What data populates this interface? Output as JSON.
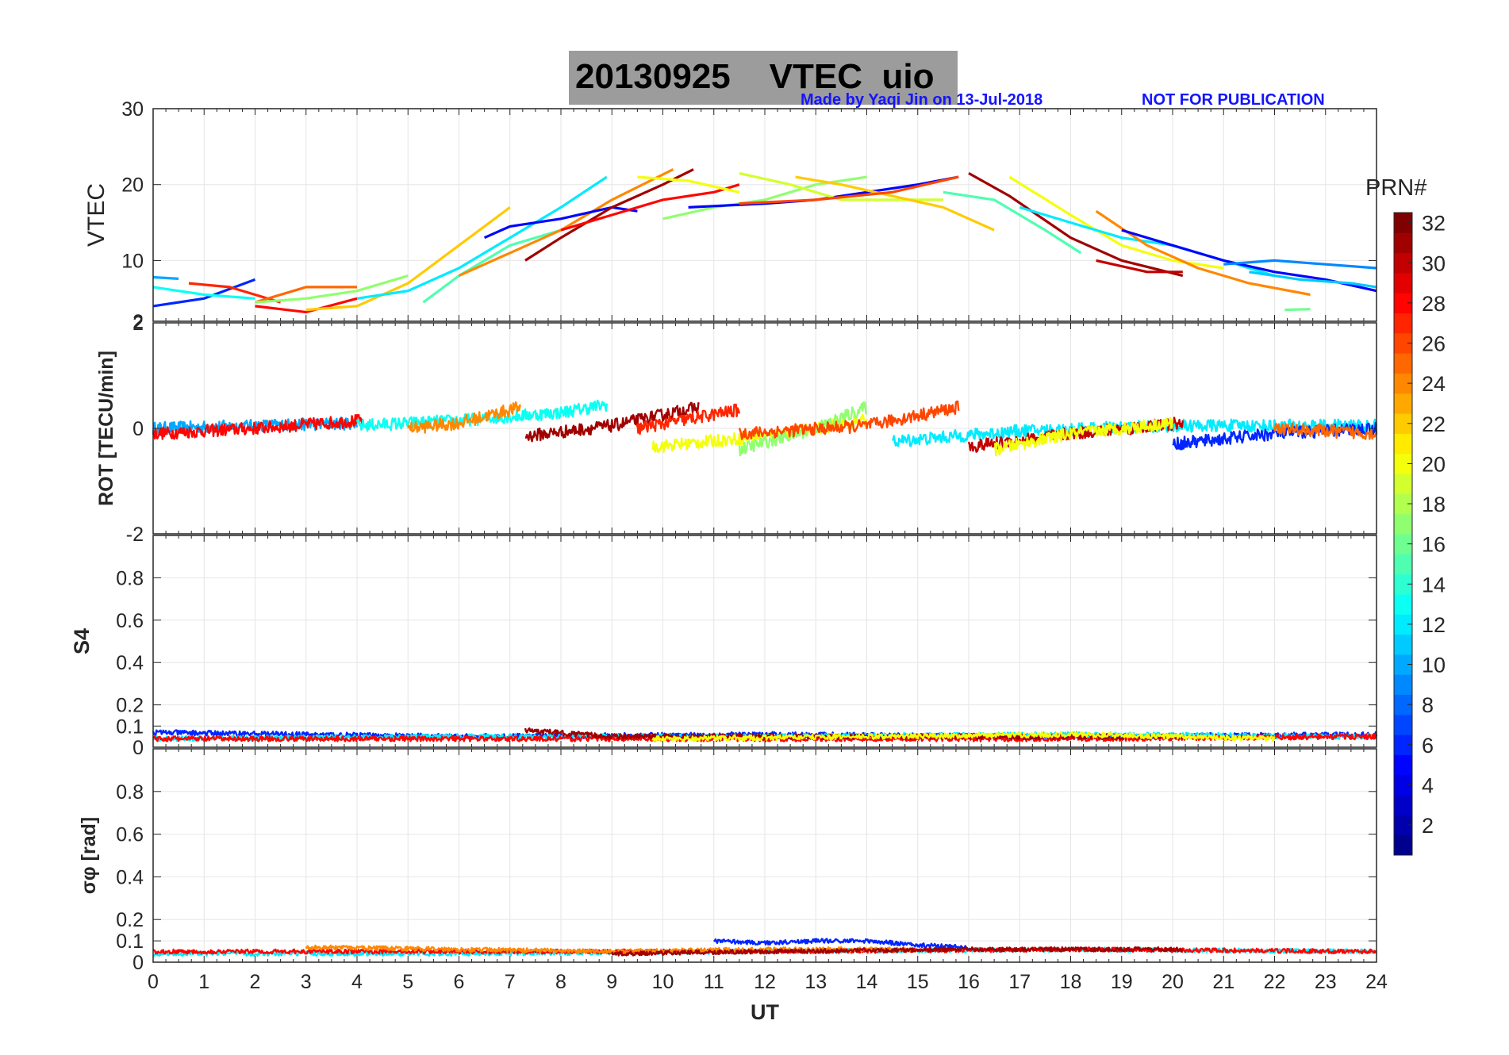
{
  "title": {
    "date": "20130925",
    "quantity": "VTEC",
    "station": "uio"
  },
  "credit": {
    "made_by": "Made by Yaqi Jin on 13-Jul-2018",
    "notice": "NOT FOR PUBLICATION"
  },
  "colorbar": {
    "label": "PRN#",
    "ticks": [
      2,
      4,
      6,
      8,
      10,
      12,
      14,
      16,
      18,
      20,
      22,
      24,
      26,
      28,
      30,
      32
    ],
    "range": [
      1,
      32
    ],
    "colormap": [
      "#00008f",
      "#0000ff",
      "#0080ff",
      "#00ffff",
      "#80ff80",
      "#ffff00",
      "#ff8000",
      "#ff0000",
      "#800000"
    ]
  },
  "chart_data": [
    {
      "type": "line",
      "panel": "vtec",
      "ylabel": "VTEC",
      "xlim": [
        0,
        24
      ],
      "ylim": [
        2,
        30
      ],
      "yticks": [
        2,
        10,
        20,
        30
      ],
      "series": [
        {
          "prn": 6,
          "x": [
            0,
            1,
            2
          ],
          "y": [
            4,
            5,
            7.5
          ]
        },
        {
          "prn": 10,
          "x": [
            0,
            0.5
          ],
          "y": [
            7.8,
            7.6
          ]
        },
        {
          "prn": 13,
          "x": [
            0,
            1,
            2
          ],
          "y": [
            6.5,
            5.5,
            5
          ]
        },
        {
          "prn": 27,
          "x": [
            0.7,
            1.5,
            2.5
          ],
          "y": [
            7,
            6.5,
            4.5
          ]
        },
        {
          "prn": 28,
          "x": [
            2,
            3,
            4
          ],
          "y": [
            4,
            3.2,
            5
          ]
        },
        {
          "prn": 25,
          "x": [
            2,
            3,
            4
          ],
          "y": [
            4.5,
            6.5,
            6.5
          ]
        },
        {
          "prn": 22,
          "x": [
            3,
            4,
            5,
            6,
            7
          ],
          "y": [
            3.5,
            4,
            7,
            12,
            17
          ]
        },
        {
          "prn": 17,
          "x": [
            2,
            3,
            4,
            5
          ],
          "y": [
            4.5,
            5,
            6,
            8
          ]
        },
        {
          "prn": 12,
          "x": [
            4,
            5,
            6,
            7,
            8,
            8.9
          ],
          "y": [
            5,
            6,
            9,
            13,
            17,
            21
          ]
        },
        {
          "prn": 15,
          "x": [
            5.3,
            6,
            7,
            8
          ],
          "y": [
            4.5,
            8,
            12,
            14
          ]
        },
        {
          "prn": 24,
          "x": [
            6,
            7,
            8,
            9,
            10.2
          ],
          "y": [
            8,
            11,
            14,
            18,
            22
          ]
        },
        {
          "prn": 5,
          "x": [
            6.5,
            7,
            8,
            9,
            9.5
          ],
          "y": [
            13,
            14.5,
            15.5,
            17,
            16.5
          ]
        },
        {
          "prn": 31,
          "x": [
            7.3,
            8,
            9,
            10,
            10.6
          ],
          "y": [
            10,
            13,
            17,
            20,
            22
          ]
        },
        {
          "prn": 28,
          "x": [
            8,
            9,
            10,
            11,
            11.5
          ],
          "y": [
            14,
            16,
            18,
            19,
            20
          ]
        },
        {
          "prn": 20,
          "x": [
            9.5,
            10.5,
            11.5
          ],
          "y": [
            21,
            20.5,
            19
          ]
        },
        {
          "prn": 17,
          "x": [
            10,
            11,
            12,
            13,
            14
          ],
          "y": [
            15.5,
            17,
            18,
            20,
            21
          ]
        },
        {
          "prn": 5,
          "x": [
            10.5,
            12,
            13,
            14,
            15,
            15.8
          ],
          "y": [
            17,
            17.5,
            18,
            19,
            20,
            21
          ]
        },
        {
          "prn": 19,
          "x": [
            11.5,
            12.5,
            13.5,
            14.5,
            15.5
          ],
          "y": [
            21.5,
            20,
            18,
            18,
            18
          ]
        },
        {
          "prn": 22,
          "x": [
            12.6,
            13.5,
            14.5,
            15.5,
            16.5
          ],
          "y": [
            21,
            20,
            18.5,
            17,
            14
          ]
        },
        {
          "prn": 26,
          "x": [
            11.5,
            13,
            14.5,
            15.8
          ],
          "y": [
            17.5,
            18,
            19,
            21
          ]
        },
        {
          "prn": 31,
          "x": [
            16,
            16.8,
            18,
            19,
            20.2
          ],
          "y": [
            21.5,
            18.5,
            13,
            10,
            8
          ]
        },
        {
          "prn": 20,
          "x": [
            16.8,
            18,
            19,
            20,
            21
          ],
          "y": [
            21,
            16,
            12,
            10,
            9
          ]
        },
        {
          "prn": 15,
          "x": [
            15.5,
            16.5,
            17.5,
            18.2
          ],
          "y": [
            19,
            18,
            14,
            11
          ]
        },
        {
          "prn": 12,
          "x": [
            17,
            18,
            19,
            20,
            21,
            22
          ],
          "y": [
            17,
            15,
            13,
            12,
            10,
            8
          ]
        },
        {
          "prn": 24,
          "x": [
            18.5,
            19.5,
            20.5,
            21.5,
            22.7
          ],
          "y": [
            16.5,
            12,
            9,
            7,
            5.5
          ]
        },
        {
          "prn": 30,
          "x": [
            18.5,
            19.5,
            20.2
          ],
          "y": [
            10,
            8.5,
            8.5
          ]
        },
        {
          "prn": 5,
          "x": [
            19,
            20,
            21,
            22,
            23,
            24
          ],
          "y": [
            14,
            12,
            10,
            8.5,
            7.5,
            6
          ]
        },
        {
          "prn": 9,
          "x": [
            21,
            22,
            23,
            24
          ],
          "y": [
            9.5,
            10,
            9.5,
            9
          ]
        },
        {
          "prn": 16,
          "x": [
            22.2,
            22.7
          ],
          "y": [
            3.5,
            3.6
          ]
        },
        {
          "prn": 11,
          "x": [
            21.5,
            22.5,
            23.5,
            24
          ],
          "y": [
            8.5,
            7.5,
            7,
            6.5
          ]
        }
      ]
    },
    {
      "type": "line",
      "panel": "rot",
      "ylabel": "ROT [TECU/min]",
      "xlim": [
        0,
        24
      ],
      "ylim": [
        -2,
        2
      ],
      "yticks": [
        -2,
        0,
        2
      ],
      "series": [
        {
          "prn": 10,
          "x": [
            0,
            2,
            4
          ],
          "y": [
            0,
            0.05,
            0.1
          ]
        },
        {
          "prn": 28,
          "x": [
            0,
            2,
            4.1
          ],
          "y": [
            -0.1,
            0,
            0.15
          ]
        },
        {
          "prn": 13,
          "x": [
            4,
            6,
            8,
            8.9
          ],
          "y": [
            0.05,
            0.15,
            0.3,
            0.45
          ]
        },
        {
          "prn": 24,
          "x": [
            5,
            6,
            7.2
          ],
          "y": [
            0,
            0.1,
            0.4
          ]
        },
        {
          "prn": 31,
          "x": [
            7.3,
            9,
            10.7
          ],
          "y": [
            -0.15,
            0.05,
            0.4
          ]
        },
        {
          "prn": 27,
          "x": [
            9.5,
            11.5
          ],
          "y": [
            0,
            0.35
          ]
        },
        {
          "prn": 20,
          "x": [
            9.8,
            12,
            14
          ],
          "y": [
            -0.35,
            -0.15,
            0.15
          ]
        },
        {
          "prn": 17,
          "x": [
            11.5,
            13,
            14
          ],
          "y": [
            -0.4,
            0,
            0.4
          ]
        },
        {
          "prn": 26,
          "x": [
            11.5,
            14,
            15.8
          ],
          "y": [
            -0.1,
            0.05,
            0.4
          ]
        },
        {
          "prn": 12,
          "x": [
            14.5,
            17,
            20,
            24
          ],
          "y": [
            -0.25,
            -0.05,
            0.05,
            0.05
          ]
        },
        {
          "prn": 30,
          "x": [
            16,
            18,
            20.2
          ],
          "y": [
            -0.35,
            -0.1,
            0.1
          ]
        },
        {
          "prn": 20,
          "x": [
            16.5,
            18,
            20
          ],
          "y": [
            -0.4,
            -0.1,
            0.1
          ]
        },
        {
          "prn": 6,
          "x": [
            20,
            22,
            24
          ],
          "y": [
            -0.3,
            -0.1,
            0
          ]
        },
        {
          "prn": 25,
          "x": [
            22,
            24
          ],
          "y": [
            0,
            -0.1
          ]
        }
      ]
    },
    {
      "type": "line",
      "panel": "s4",
      "ylabel": "S4",
      "xlim": [
        0,
        24
      ],
      "ylim": [
        0,
        1
      ],
      "yticks": [
        0,
        0.1,
        0.2,
        0.4,
        0.6,
        0.8
      ],
      "series": [
        {
          "prn": 6,
          "x": [
            0,
            6,
            12,
            18,
            24
          ],
          "y": [
            0.07,
            0.05,
            0.06,
            0.05,
            0.06
          ]
        },
        {
          "prn": 12,
          "x": [
            0,
            6,
            12,
            18,
            24
          ],
          "y": [
            0.04,
            0.05,
            0.05,
            0.06,
            0.05
          ]
        },
        {
          "prn": 28,
          "x": [
            0,
            6,
            12,
            18,
            24
          ],
          "y": [
            0.04,
            0.04,
            0.04,
            0.04,
            0.05
          ]
        },
        {
          "prn": 31,
          "x": [
            7.3,
            9,
            12,
            15,
            20.2
          ],
          "y": [
            0.08,
            0.05,
            0.05,
            0.05,
            0.05
          ]
        },
        {
          "prn": 20,
          "x": [
            9.8,
            14,
            18,
            22
          ],
          "y": [
            0.04,
            0.05,
            0.06,
            0.04
          ]
        }
      ]
    },
    {
      "type": "line",
      "panel": "sigma_phi",
      "ylabel": "σφ [rad]",
      "xlim": [
        0,
        24
      ],
      "ylim": [
        0,
        1
      ],
      "yticks": [
        0,
        0.1,
        0.2,
        0.4,
        0.6,
        0.8
      ],
      "xlabel": "UT",
      "xticks": [
        0,
        1,
        2,
        3,
        4,
        5,
        6,
        7,
        8,
        9,
        10,
        11,
        12,
        13,
        14,
        15,
        16,
        17,
        18,
        19,
        20,
        21,
        22,
        23,
        24
      ],
      "series": [
        {
          "prn": 12,
          "x": [
            0,
            6,
            12,
            18,
            24
          ],
          "y": [
            0.04,
            0.04,
            0.05,
            0.06,
            0.05
          ]
        },
        {
          "prn": 28,
          "x": [
            0,
            6,
            12,
            18,
            24
          ],
          "y": [
            0.05,
            0.05,
            0.05,
            0.06,
            0.05
          ]
        },
        {
          "prn": 24,
          "x": [
            3,
            6,
            9,
            12,
            15
          ],
          "y": [
            0.07,
            0.06,
            0.05,
            0.06,
            0.06
          ]
        },
        {
          "prn": 6,
          "x": [
            11,
            12,
            13,
            14,
            15,
            16
          ],
          "y": [
            0.1,
            0.09,
            0.1,
            0.1,
            0.08,
            0.07
          ]
        },
        {
          "prn": 31,
          "x": [
            9,
            12,
            16,
            20.2
          ],
          "y": [
            0.04,
            0.05,
            0.06,
            0.06
          ]
        }
      ]
    }
  ]
}
